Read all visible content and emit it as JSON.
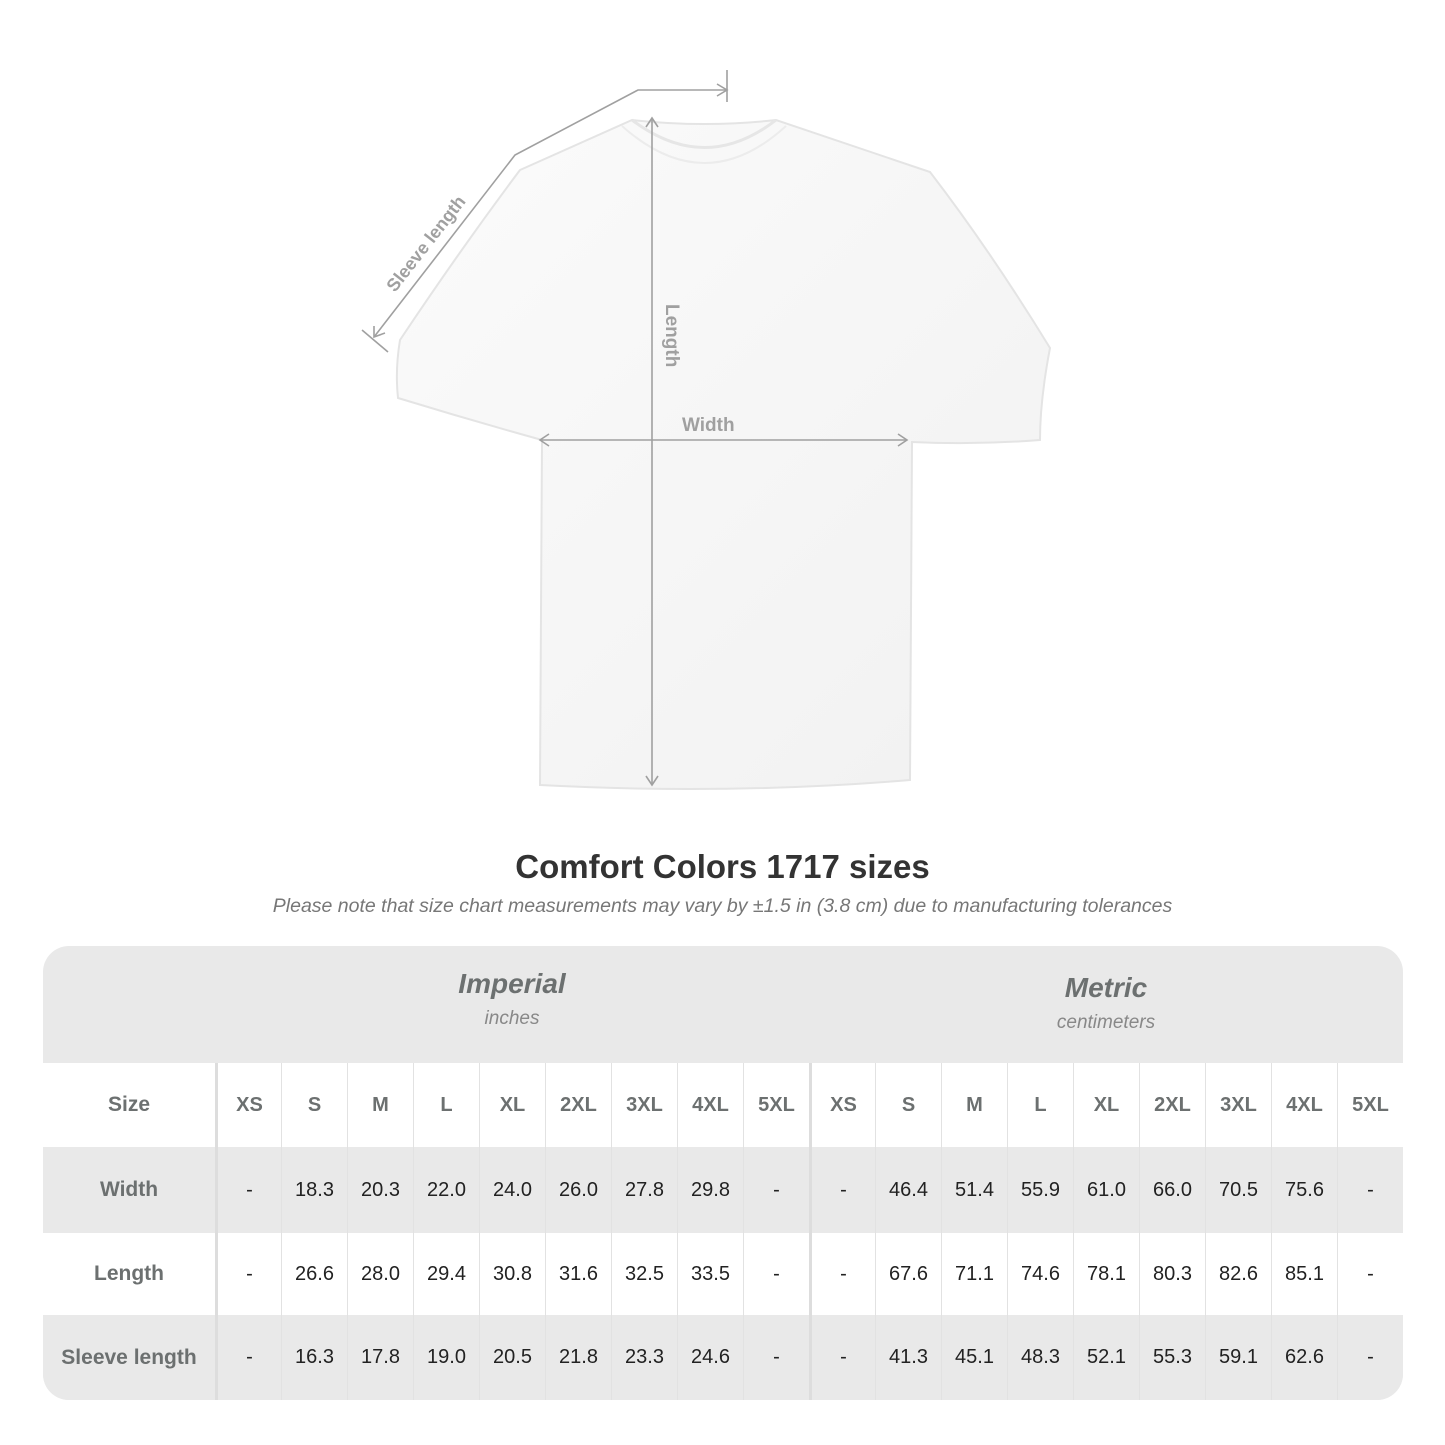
{
  "diagram": {
    "labels": {
      "sleeve": "Sleeve length",
      "length": "Length",
      "width": "Width"
    },
    "line_color": "#a0a0a0"
  },
  "title": "Comfort Colors 1717 sizes",
  "note": "Please note that size chart measurements may vary by ±1.5 in (3.8 cm) due to manufacturing tolerances",
  "table": {
    "imperial": {
      "title": "Imperial",
      "unit": "inches"
    },
    "metric": {
      "title": "Metric",
      "unit": "centimeters"
    },
    "size_label": "Size",
    "sizes": [
      "XS",
      "S",
      "M",
      "L",
      "XL",
      "2XL",
      "3XL",
      "4XL",
      "5XL"
    ],
    "rows": [
      {
        "label": "Width",
        "imperial": [
          "-",
          "18.3",
          "20.3",
          "22.0",
          "24.0",
          "26.0",
          "27.8",
          "29.8",
          "-"
        ],
        "metric": [
          "-",
          "46.4",
          "51.4",
          "55.9",
          "61.0",
          "66.0",
          "70.5",
          "75.6",
          "-"
        ]
      },
      {
        "label": "Length",
        "imperial": [
          "-",
          "26.6",
          "28.0",
          "29.4",
          "30.8",
          "31.6",
          "32.5",
          "33.5",
          "-"
        ],
        "metric": [
          "-",
          "67.6",
          "71.1",
          "74.6",
          "78.1",
          "80.3",
          "82.6",
          "85.1",
          "-"
        ]
      },
      {
        "label": "Sleeve length",
        "imperial": [
          "-",
          "16.3",
          "17.8",
          "19.0",
          "20.5",
          "21.8",
          "23.3",
          "24.6",
          "-"
        ],
        "metric": [
          "-",
          "41.3",
          "45.1",
          "48.3",
          "52.1",
          "55.3",
          "59.1",
          "62.6",
          "-"
        ]
      }
    ],
    "colors": {
      "band": "#e9e9e9",
      "header_text": "#6c7070"
    }
  }
}
